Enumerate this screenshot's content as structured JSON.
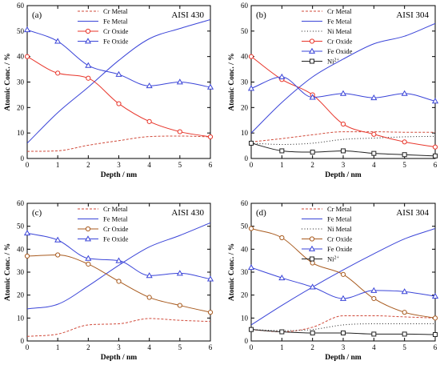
{
  "colors": {
    "cr_metal": "#d04a3a",
    "fe_metal": "#3a44d8",
    "ni_metal": "#222222",
    "cr_oxide_red": "#e8352a",
    "cr_oxide_brown": "#a85a1e",
    "fe_oxide": "#3a44d8",
    "ni2": "#222222",
    "axis": "#000000"
  },
  "chart_data": [
    {
      "type": "line",
      "panel_label": "(a)",
      "material": "AISI 430",
      "xlabel": "Depth / nm",
      "ylabel": "Atomic Conc. / %",
      "xlim": [
        0,
        6
      ],
      "ylim": [
        0,
        60
      ],
      "xticks": [
        0,
        1,
        2,
        3,
        4,
        5,
        6
      ],
      "yticks": [
        0,
        10,
        20,
        30,
        40,
        50,
        60
      ],
      "legend_position": "top-center",
      "series": [
        {
          "name": "Cr Metal",
          "color_key": "cr_metal",
          "style": "dashed",
          "marker": "none",
          "x": [
            0,
            1,
            2,
            3,
            4,
            5,
            6
          ],
          "y": [
            2.8,
            3.0,
            5.2,
            7.0,
            8.6,
            8.8,
            8.5
          ]
        },
        {
          "name": "Fe Metal",
          "color_key": "fe_metal",
          "style": "solid",
          "marker": "none",
          "x": [
            0,
            1,
            2,
            3,
            4,
            5,
            6
          ],
          "y": [
            6.0,
            18.0,
            28.0,
            38.5,
            47.0,
            51.0,
            54.5
          ]
        },
        {
          "name": "Cr Oxide",
          "color_key": "cr_oxide_red",
          "style": "solid",
          "marker": "circle",
          "x": [
            0,
            1,
            2,
            3,
            4,
            5,
            6
          ],
          "y": [
            40.0,
            33.5,
            31.5,
            21.5,
            14.5,
            10.5,
            8.5
          ]
        },
        {
          "name": "Fe Oxide",
          "color_key": "fe_oxide",
          "style": "solid",
          "marker": "triangle",
          "x": [
            0,
            1,
            2,
            3,
            4,
            5,
            6
          ],
          "y": [
            50.5,
            46.0,
            36.5,
            33.0,
            28.5,
            30.0,
            28.0
          ]
        }
      ]
    },
    {
      "type": "line",
      "panel_label": "(b)",
      "material": "AISI 304",
      "xlabel": "Depth / nm",
      "ylabel": "Atomic Conc. / %",
      "xlim": [
        0,
        6
      ],
      "ylim": [
        0,
        60
      ],
      "xticks": [
        0,
        1,
        2,
        3,
        4,
        5,
        6
      ],
      "yticks": [
        0,
        10,
        20,
        30,
        40,
        50,
        60
      ],
      "legend_position": "top-center",
      "series": [
        {
          "name": "Cr Metal",
          "color_key": "cr_metal",
          "style": "dashed",
          "marker": "none",
          "x": [
            0,
            1,
            2,
            3,
            4,
            5,
            6
          ],
          "y": [
            6.5,
            7.8,
            9.3,
            10.5,
            10.5,
            10.3,
            10.3
          ]
        },
        {
          "name": "Fe Metal",
          "color_key": "fe_metal",
          "style": "solid",
          "marker": "none",
          "x": [
            0,
            1,
            2,
            3,
            4,
            5,
            6
          ],
          "y": [
            10.0,
            22.0,
            32.0,
            39.0,
            45.0,
            48.0,
            53.0
          ]
        },
        {
          "name": "Ni Metal",
          "color_key": "ni_metal",
          "style": "dotted",
          "marker": "none",
          "x": [
            0,
            1,
            2,
            3,
            4,
            5,
            6
          ],
          "y": [
            6.0,
            5.5,
            6.0,
            7.5,
            8.0,
            8.5,
            8.7
          ]
        },
        {
          "name": "Cr Oxide",
          "color_key": "cr_oxide_red",
          "style": "solid",
          "marker": "circle",
          "x": [
            0,
            1,
            2,
            3,
            4,
            5,
            6
          ],
          "y": [
            40.0,
            31.0,
            25.0,
            13.5,
            9.5,
            6.5,
            4.5
          ]
        },
        {
          "name": "Fe Oxide",
          "color_key": "fe_oxide",
          "style": "solid",
          "marker": "triangle",
          "x": [
            0,
            1,
            2,
            3,
            4,
            5,
            6
          ],
          "y": [
            27.5,
            32.0,
            24.0,
            25.5,
            23.8,
            25.5,
            22.5
          ]
        },
        {
          "name": "Ni2+",
          "color_key": "ni2",
          "style": "solid",
          "marker": "square",
          "x": [
            0,
            1,
            2,
            3,
            4,
            5,
            6
          ],
          "y": [
            6.0,
            3.0,
            2.5,
            3.0,
            2.0,
            1.5,
            1.0
          ]
        }
      ]
    },
    {
      "type": "line",
      "panel_label": "(c)",
      "material": "AISI 430",
      "xlabel": "Depth / nm",
      "ylabel": "Atomic Conc. / %",
      "xlim": [
        0,
        6
      ],
      "ylim": [
        0,
        60
      ],
      "xticks": [
        0,
        1,
        2,
        3,
        4,
        5,
        6
      ],
      "yticks": [
        0,
        10,
        20,
        30,
        40,
        50,
        60
      ],
      "legend_position": "top-center",
      "series": [
        {
          "name": "Cr Metal",
          "color_key": "cr_metal",
          "style": "dashed",
          "marker": "none",
          "x": [
            0,
            1,
            2,
            3,
            4,
            5,
            6
          ],
          "y": [
            2.0,
            3.0,
            7.0,
            7.5,
            9.8,
            9.0,
            8.5
          ]
        },
        {
          "name": "Fe Metal",
          "color_key": "fe_metal",
          "style": "solid",
          "marker": "none",
          "x": [
            0,
            1,
            2,
            3,
            4,
            5,
            6
          ],
          "y": [
            14.0,
            16.0,
            24.0,
            33.0,
            41.0,
            46.0,
            51.5
          ]
        },
        {
          "name": "Cr Oxide",
          "color_key": "cr_oxide_brown",
          "style": "solid",
          "marker": "circle",
          "x": [
            0,
            1,
            2,
            3,
            4,
            5,
            6
          ],
          "y": [
            37.0,
            37.5,
            33.5,
            26.0,
            19.0,
            15.5,
            12.5
          ]
        },
        {
          "name": "Fe Oxide",
          "color_key": "fe_oxide",
          "style": "solid",
          "marker": "triangle",
          "x": [
            0,
            1,
            2,
            3,
            4,
            5,
            6
          ],
          "y": [
            47.0,
            44.0,
            36.0,
            35.0,
            28.5,
            29.5,
            27.0
          ]
        }
      ]
    },
    {
      "type": "line",
      "panel_label": "(d)",
      "material": "AISI 304",
      "xlabel": "Depth / nm",
      "ylabel": "Atomic Conc. / %",
      "xlim": [
        0,
        6
      ],
      "ylim": [
        0,
        60
      ],
      "xticks": [
        0,
        1,
        2,
        3,
        4,
        5,
        6
      ],
      "yticks": [
        0,
        10,
        20,
        30,
        40,
        50,
        60
      ],
      "legend_position": "top-center",
      "series": [
        {
          "name": "Cr Metal",
          "color_key": "cr_metal",
          "style": "dashed",
          "marker": "none",
          "x": [
            0,
            1,
            2,
            3,
            4,
            5,
            6
          ],
          "y": [
            5.0,
            4.0,
            6.0,
            11.0,
            11.0,
            10.5,
            10.0
          ]
        },
        {
          "name": "Fe Metal",
          "color_key": "fe_metal",
          "style": "solid",
          "marker": "none",
          "x": [
            0,
            1,
            2,
            3,
            4,
            5,
            6
          ],
          "y": [
            7.0,
            15.5,
            23.5,
            31.0,
            38.0,
            44.5,
            49.0
          ]
        },
        {
          "name": "Ni Metal",
          "color_key": "ni_metal",
          "style": "dotted",
          "marker": "none",
          "x": [
            0,
            1,
            2,
            3,
            4,
            5,
            6
          ],
          "y": [
            5.0,
            4.5,
            5.0,
            7.0,
            7.5,
            7.5,
            7.5
          ]
        },
        {
          "name": "Cr Oxide",
          "color_key": "cr_oxide_brown",
          "style": "solid",
          "marker": "circle",
          "x": [
            0,
            1,
            2,
            3,
            4,
            5,
            6
          ],
          "y": [
            49.0,
            45.0,
            34.0,
            29.0,
            18.5,
            12.5,
            10.0
          ]
        },
        {
          "name": "Fe Oxide",
          "color_key": "fe_oxide",
          "style": "solid",
          "marker": "triangle",
          "x": [
            0,
            1,
            2,
            3,
            4,
            5,
            6
          ],
          "y": [
            32.0,
            27.5,
            23.5,
            18.5,
            22.0,
            21.5,
            19.5
          ]
        },
        {
          "name": "Ni2+",
          "color_key": "ni2",
          "style": "solid",
          "marker": "square",
          "x": [
            0,
            1,
            2,
            3,
            4,
            5,
            6
          ],
          "y": [
            5.0,
            4.0,
            3.5,
            3.5,
            3.0,
            3.0,
            2.8
          ]
        }
      ]
    }
  ]
}
